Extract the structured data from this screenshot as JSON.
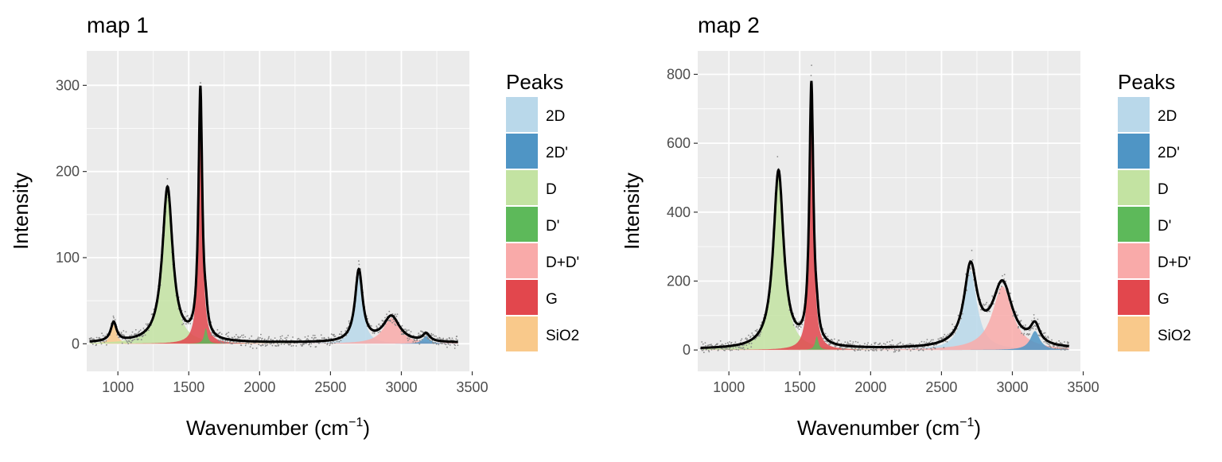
{
  "chart_data": [
    {
      "type": "area",
      "title": "map 1",
      "xlabel": "Wavenumber (cm",
      "xlabel_sup": "−1",
      "xlabel_end": ")",
      "ylabel": "Intensity",
      "xlim": [
        780,
        3480
      ],
      "ylim": [
        -32,
        340
      ],
      "xticks": [
        1000,
        1500,
        2000,
        2500,
        3000,
        3500
      ],
      "yticks": [
        0,
        100,
        200,
        300
      ],
      "grid": true,
      "legend": {
        "title": "Peaks",
        "position": "right",
        "entries": [
          "2D",
          "2D'",
          "D",
          "D'",
          "D+D'",
          "G",
          "SiO2"
        ]
      },
      "peaks": [
        {
          "name": "SiO2",
          "center": 970,
          "amplitude": 22,
          "width": 25
        },
        {
          "name": "D",
          "center": 1350,
          "amplitude": 180,
          "width": 44
        },
        {
          "name": "G",
          "center": 1582,
          "amplitude": 290,
          "width": 16
        },
        {
          "name": "D'",
          "center": 1620,
          "amplitude": 18,
          "width": 14
        },
        {
          "name": "2D",
          "center": 2700,
          "amplitude": 83,
          "width": 32
        },
        {
          "name": "D+D'",
          "center": 2930,
          "amplitude": 30,
          "width": 70
        },
        {
          "name": "2D'",
          "center": 3175,
          "amplitude": 9,
          "width": 30
        }
      ],
      "baseline": 1,
      "noise": 6
    },
    {
      "type": "area",
      "title": "map 2",
      "xlabel": "Wavenumber (cm",
      "xlabel_sup": "−1",
      "xlabel_end": ")",
      "ylabel": "Intensity",
      "xlim": [
        780,
        3480
      ],
      "ylim": [
        -62,
        868
      ],
      "xticks": [
        1000,
        1500,
        2000,
        2500,
        3000,
        3500
      ],
      "yticks": [
        0,
        200,
        400,
        600,
        800
      ],
      "grid": true,
      "legend": {
        "title": "Peaks",
        "position": "right",
        "entries": [
          "2D",
          "2D'",
          "D",
          "D'",
          "D+D'",
          "G",
          "SiO2"
        ]
      },
      "peaks": [
        {
          "name": "D",
          "center": 1350,
          "amplitude": 515,
          "width": 44
        },
        {
          "name": "G",
          "center": 1582,
          "amplitude": 755,
          "width": 17
        },
        {
          "name": "D'",
          "center": 1620,
          "amplitude": 40,
          "width": 14
        },
        {
          "name": "2D",
          "center": 2705,
          "amplitude": 230,
          "width": 55
        },
        {
          "name": "D+D'",
          "center": 2930,
          "amplitude": 185,
          "width": 85
        },
        {
          "name": "2D'",
          "center": 3160,
          "amplitude": 55,
          "width": 40
        }
      ],
      "baseline": 2,
      "noise": 14
    }
  ],
  "colors": {
    "2D": "#b9d8ea",
    "2D'": "#4f95c5",
    "D": "#c3e3a2",
    "D'": "#5db95a",
    "D+D'": "#f9aaa9",
    "G": "#e2474d",
    "SiO2": "#f9c98b",
    "panel": "#ebebeb",
    "grid": "#ffffff",
    "line": "#000000",
    "points": "#8a8a8a"
  }
}
